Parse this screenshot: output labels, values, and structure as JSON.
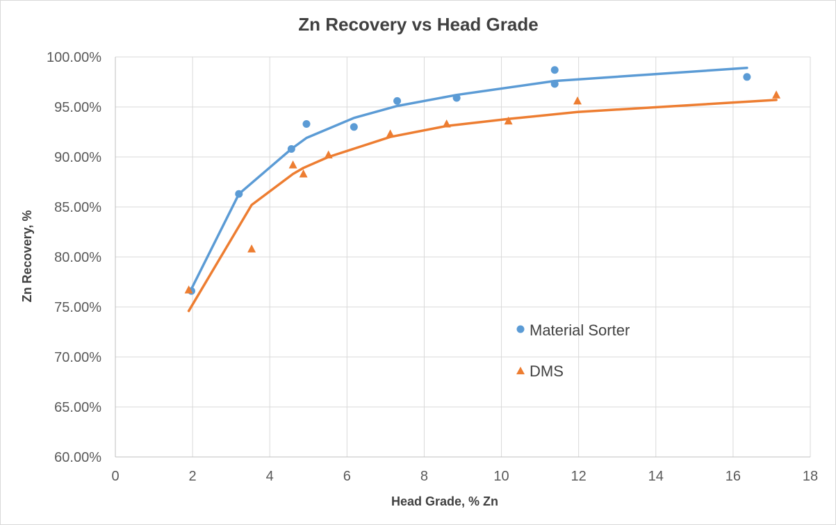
{
  "chart_data": {
    "type": "scatter",
    "title": "Zn Recovery vs Head Grade",
    "xlabel": "Head Grade,  % Zn",
    "ylabel": "Zn Recovery, %",
    "xlim": [
      0,
      18
    ],
    "ylim": [
      60,
      100
    ],
    "x_ticks": [
      "0",
      "2",
      "4",
      "6",
      "8",
      "10",
      "12",
      "14",
      "16",
      "18"
    ],
    "x_tick_values": [
      0,
      2,
      4,
      6,
      8,
      10,
      12,
      14,
      16,
      18
    ],
    "y_ticks": [
      "60.00%",
      "65.00%",
      "70.00%",
      "75.00%",
      "80.00%",
      "85.00%",
      "90.00%",
      "95.00%",
      "100.00%"
    ],
    "y_tick_values": [
      60,
      65,
      70,
      75,
      80,
      85,
      90,
      95,
      100
    ],
    "grid": true,
    "legend_position": "inside-right",
    "series": [
      {
        "name": "Material Sorter",
        "marker": "circle",
        "color": "#5b9bd5",
        "points": [
          {
            "x": 1.97,
            "y": 76.6
          },
          {
            "x": 3.2,
            "y": 86.3
          },
          {
            "x": 4.56,
            "y": 90.8
          },
          {
            "x": 4.95,
            "y": 93.3
          },
          {
            "x": 6.18,
            "y": 93.0
          },
          {
            "x": 7.3,
            "y": 95.6
          },
          {
            "x": 8.84,
            "y": 95.9
          },
          {
            "x": 11.38,
            "y": 98.7
          },
          {
            "x": 11.38,
            "y": 97.3
          },
          {
            "x": 16.36,
            "y": 98.0
          }
        ],
        "trend_points": [
          {
            "x": 1.97,
            "y": 76.8
          },
          {
            "x": 3.2,
            "y": 86.3
          },
          {
            "x": 4.56,
            "y": 90.8
          },
          {
            "x": 4.95,
            "y": 91.9
          },
          {
            "x": 6.18,
            "y": 93.9
          },
          {
            "x": 7.3,
            "y": 95.1
          },
          {
            "x": 8.84,
            "y": 96.2
          },
          {
            "x": 11.38,
            "y": 97.6
          },
          {
            "x": 16.36,
            "y": 98.9
          }
        ]
      },
      {
        "name": "DMS",
        "marker": "triangle",
        "color": "#ed7d31",
        "points": [
          {
            "x": 1.9,
            "y": 76.7
          },
          {
            "x": 3.53,
            "y": 80.8
          },
          {
            "x": 4.6,
            "y": 89.2
          },
          {
            "x": 4.87,
            "y": 88.3
          },
          {
            "x": 5.52,
            "y": 90.2
          },
          {
            "x": 7.12,
            "y": 92.3
          },
          {
            "x": 8.58,
            "y": 93.3
          },
          {
            "x": 10.18,
            "y": 93.6
          },
          {
            "x": 11.97,
            "y": 95.6
          },
          {
            "x": 17.12,
            "y": 96.2
          }
        ],
        "trend_points": [
          {
            "x": 1.9,
            "y": 74.6
          },
          {
            "x": 3.53,
            "y": 85.2
          },
          {
            "x": 4.6,
            "y": 88.3
          },
          {
            "x": 4.87,
            "y": 88.9
          },
          {
            "x": 5.52,
            "y": 90.0
          },
          {
            "x": 7.12,
            "y": 92.0
          },
          {
            "x": 8.58,
            "y": 93.1
          },
          {
            "x": 10.18,
            "y": 93.8
          },
          {
            "x": 11.97,
            "y": 94.5
          },
          {
            "x": 17.12,
            "y": 95.7
          }
        ]
      }
    ]
  }
}
